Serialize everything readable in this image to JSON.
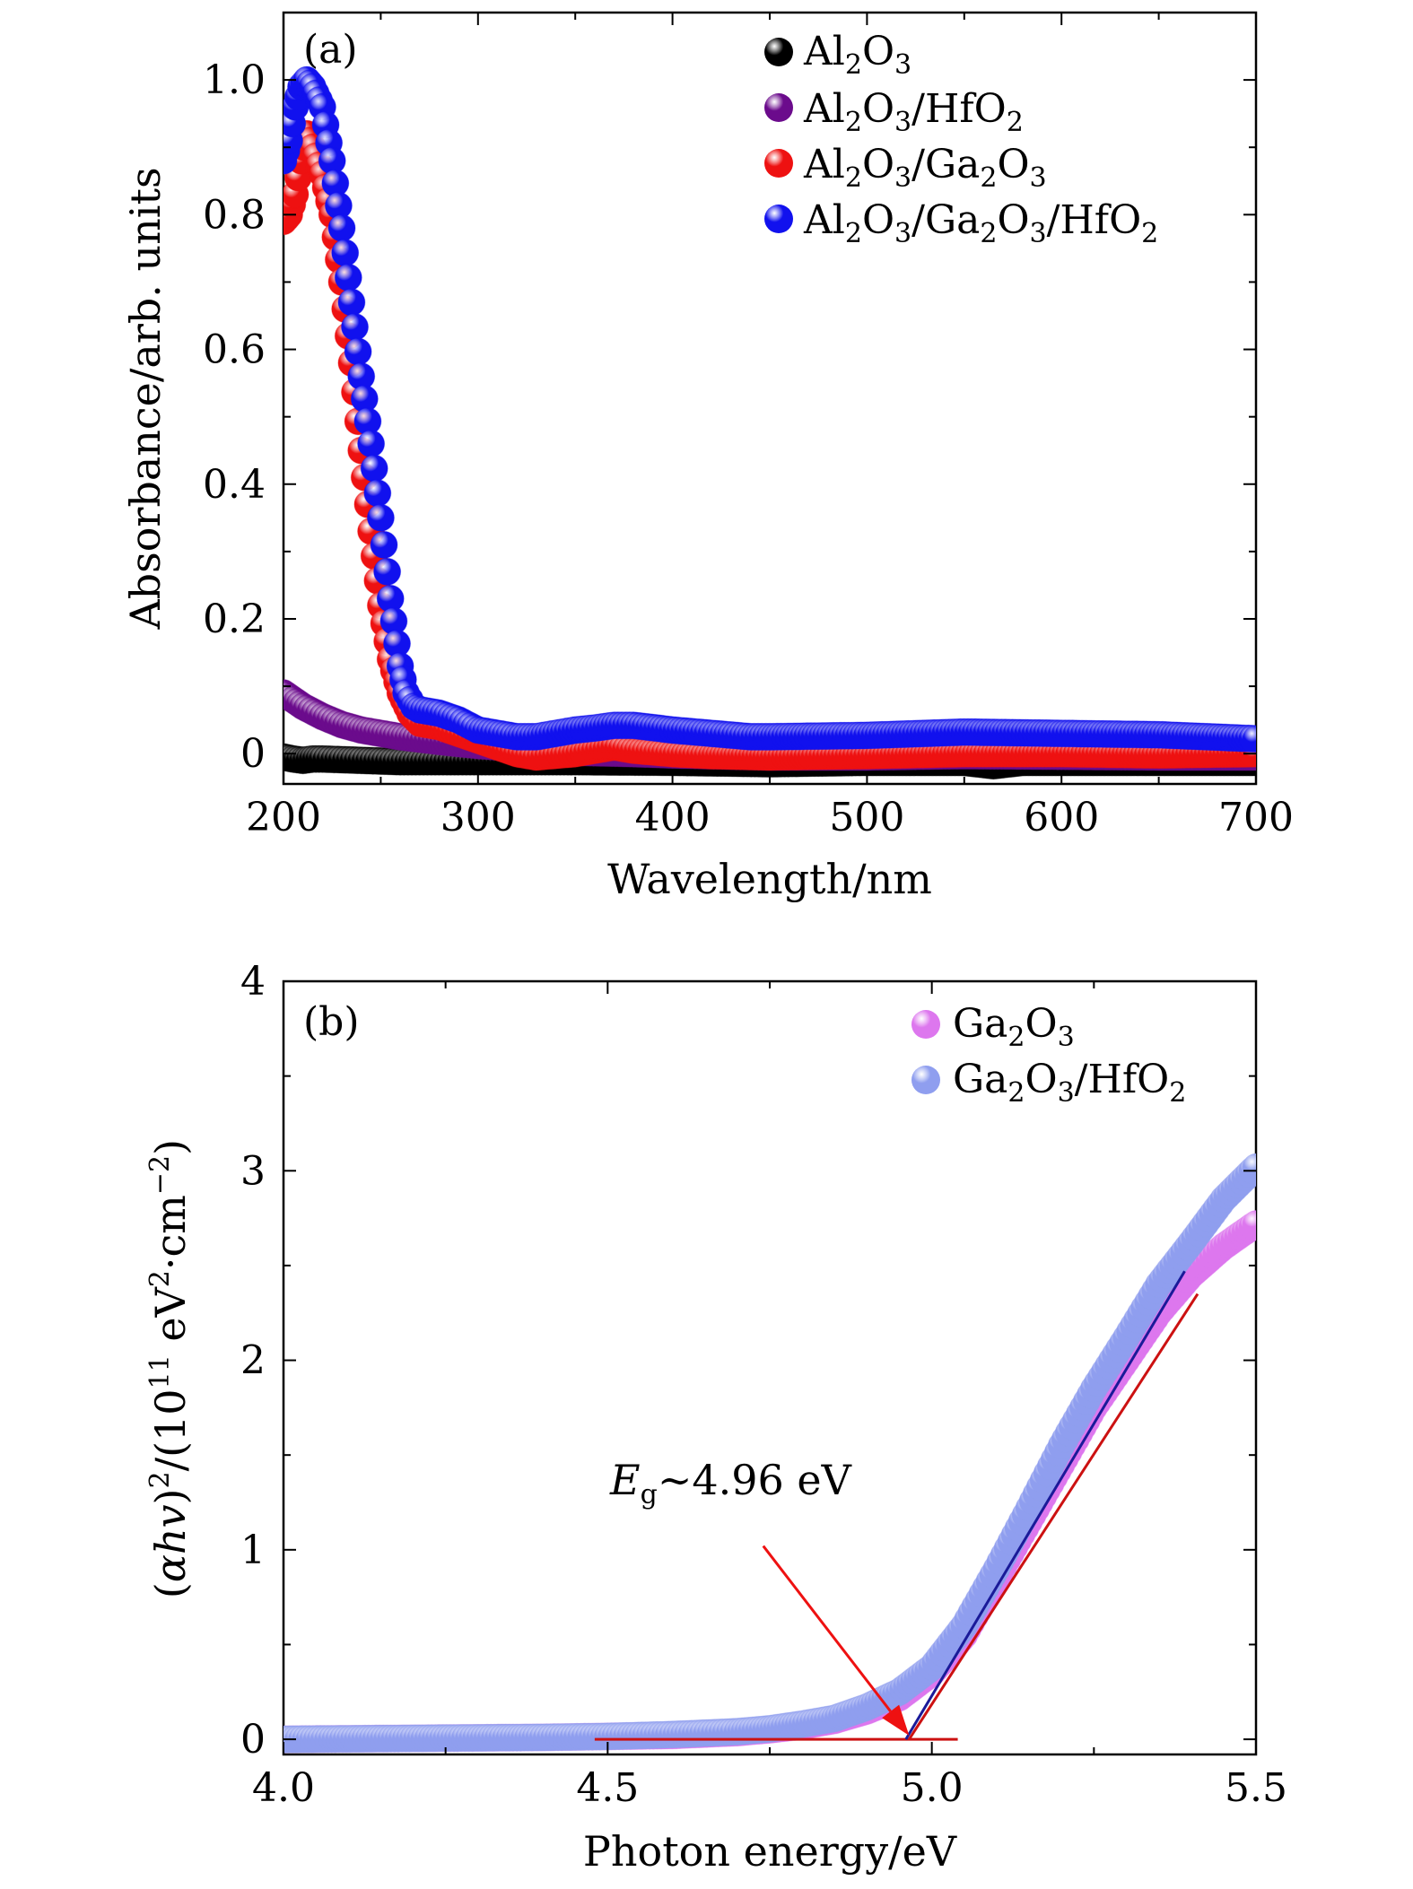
{
  "chart_data": [
    {
      "type": "scatter",
      "panel_label": "(a)",
      "xlabel": "Wavelength/nm",
      "ylabel": "Absorbance/arb. units",
      "xlim": [
        200,
        700
      ],
      "ylim": [
        -0.045,
        1.1
      ],
      "x_ticks": [
        200,
        300,
        400,
        500,
        600,
        700
      ],
      "y_ticks": [
        0,
        0.2,
        0.4,
        0.6,
        0.8,
        1.0
      ],
      "y_tick_labels": [
        "0",
        "0.2",
        "0.4",
        "0.6",
        "0.8",
        "1.0"
      ],
      "legend_position": "top-right",
      "series": [
        {
          "name": "Al2O3",
          "color": "#000000",
          "points": [
            [
              200,
              -0.005
            ],
            [
              205,
              -0.008
            ],
            [
              210,
              -0.01
            ],
            [
              215,
              -0.008
            ],
            [
              220,
              -0.008
            ],
            [
              240,
              -0.01
            ],
            [
              260,
              -0.012
            ],
            [
              280,
              -0.012
            ],
            [
              300,
              -0.012
            ],
            [
              350,
              -0.012
            ],
            [
              400,
              -0.013
            ],
            [
              450,
              -0.015
            ],
            [
              500,
              -0.013
            ],
            [
              550,
              -0.013
            ],
            [
              565,
              -0.018
            ],
            [
              580,
              -0.013
            ],
            [
              600,
              -0.013
            ],
            [
              650,
              -0.013
            ],
            [
              700,
              -0.013
            ]
          ]
        },
        {
          "name": "Al2O3/HfO2",
          "color": "#6b0b8c",
          "points": [
            [
              200,
              0.09
            ],
            [
              205,
              0.08
            ],
            [
              210,
              0.07
            ],
            [
              220,
              0.055
            ],
            [
              230,
              0.043
            ],
            [
              240,
              0.035
            ],
            [
              250,
              0.03
            ],
            [
              260,
              0.025
            ],
            [
              280,
              0.018
            ],
            [
              300,
              0.012
            ],
            [
              320,
              0.008
            ],
            [
              350,
              0.002
            ],
            [
              380,
              0.0
            ],
            [
              400,
              -0.002
            ],
            [
              450,
              -0.005
            ],
            [
              500,
              -0.005
            ],
            [
              550,
              -0.003
            ],
            [
              600,
              -0.004
            ],
            [
              650,
              -0.005
            ],
            [
              700,
              -0.005
            ]
          ]
        },
        {
          "name": "Al2O3/Ga2O3",
          "color": "#ee1111",
          "points": [
            [
              200,
              0.79
            ],
            [
              203,
              0.8
            ],
            [
              206,
              0.83
            ],
            [
              209,
              0.88
            ],
            [
              212,
              0.92
            ],
            [
              215,
              0.9
            ],
            [
              220,
              0.86
            ],
            [
              225,
              0.8
            ],
            [
              230,
              0.7
            ],
            [
              235,
              0.58
            ],
            [
              240,
              0.45
            ],
            [
              245,
              0.33
            ],
            [
              250,
              0.22
            ],
            [
              255,
              0.14
            ],
            [
              260,
              0.09
            ],
            [
              265,
              0.06
            ],
            [
              270,
              0.045
            ],
            [
              280,
              0.04
            ],
            [
              290,
              0.03
            ],
            [
              300,
              0.02
            ],
            [
              310,
              0.01
            ],
            [
              320,
              0.0
            ],
            [
              330,
              -0.005
            ],
            [
              350,
              0.0
            ],
            [
              360,
              0.005
            ],
            [
              370,
              0.01
            ],
            [
              380,
              0.005
            ],
            [
              400,
              0.0
            ],
            [
              420,
              -0.003
            ],
            [
              450,
              -0.005
            ],
            [
              500,
              -0.003
            ],
            [
              550,
              0.0
            ],
            [
              600,
              0.0
            ],
            [
              650,
              -0.002
            ],
            [
              700,
              0.0
            ]
          ]
        },
        {
          "name": "Al2O3/Ga2O3/HfO2",
          "color": "#1111ee",
          "points": [
            [
              200,
              0.88
            ],
            [
              203,
              0.91
            ],
            [
              206,
              0.96
            ],
            [
              209,
              0.99
            ],
            [
              212,
              1.0
            ],
            [
              215,
              0.99
            ],
            [
              220,
              0.96
            ],
            [
              225,
              0.88
            ],
            [
              230,
              0.78
            ],
            [
              235,
              0.67
            ],
            [
              240,
              0.56
            ],
            [
              245,
              0.46
            ],
            [
              250,
              0.35
            ],
            [
              255,
              0.23
            ],
            [
              260,
              0.13
            ],
            [
              263,
              0.09
            ],
            [
              267,
              0.07
            ],
            [
              270,
              0.065
            ],
            [
              280,
              0.06
            ],
            [
              290,
              0.05
            ],
            [
              300,
              0.035
            ],
            [
              310,
              0.03
            ],
            [
              320,
              0.025
            ],
            [
              330,
              0.025
            ],
            [
              340,
              0.03
            ],
            [
              350,
              0.035
            ],
            [
              360,
              0.038
            ],
            [
              370,
              0.042
            ],
            [
              380,
              0.042
            ],
            [
              400,
              0.035
            ],
            [
              420,
              0.03
            ],
            [
              440,
              0.025
            ],
            [
              450,
              0.025
            ],
            [
              500,
              0.027
            ],
            [
              550,
              0.032
            ],
            [
              600,
              0.03
            ],
            [
              650,
              0.028
            ],
            [
              700,
              0.022
            ]
          ]
        }
      ]
    },
    {
      "type": "scatter",
      "panel_label": "(b)",
      "xlabel": "Photon energy/eV",
      "ylabel": "(αhv)²/(10¹¹ eV²·cm⁻²)",
      "xlim": [
        4.0,
        5.5
      ],
      "ylim": [
        -0.08,
        4.0
      ],
      "x_ticks": [
        4.0,
        4.5,
        5.0,
        5.5
      ],
      "x_tick_labels": [
        "4.0",
        "4.5",
        "5.0",
        "5.5"
      ],
      "y_ticks": [
        0,
        1,
        2,
        3,
        4
      ],
      "y_tick_labels": [
        "0",
        "1",
        "2",
        "3",
        "4"
      ],
      "legend_position": "top-right",
      "series": [
        {
          "name": "Ga2O3",
          "color": "#dd77ee",
          "points": [
            [
              4.0,
              0.0
            ],
            [
              4.2,
              0.005
            ],
            [
              4.4,
              0.01
            ],
            [
              4.5,
              0.015
            ],
            [
              4.6,
              0.02
            ],
            [
              4.7,
              0.035
            ],
            [
              4.75,
              0.05
            ],
            [
              4.8,
              0.07
            ],
            [
              4.85,
              0.1
            ],
            [
              4.9,
              0.15
            ],
            [
              4.95,
              0.22
            ],
            [
              5.0,
              0.35
            ],
            [
              5.05,
              0.55
            ],
            [
              5.1,
              0.85
            ],
            [
              5.15,
              1.15
            ],
            [
              5.2,
              1.45
            ],
            [
              5.25,
              1.75
            ],
            [
              5.3,
              2.0
            ],
            [
              5.35,
              2.25
            ],
            [
              5.4,
              2.45
            ],
            [
              5.45,
              2.6
            ],
            [
              5.5,
              2.72
            ]
          ]
        },
        {
          "name": "Ga2O3/HfO2",
          "color": "#8f9eef",
          "points": [
            [
              4.0,
              0.0
            ],
            [
              4.2,
              0.005
            ],
            [
              4.4,
              0.01
            ],
            [
              4.5,
              0.015
            ],
            [
              4.6,
              0.025
            ],
            [
              4.7,
              0.04
            ],
            [
              4.75,
              0.055
            ],
            [
              4.8,
              0.08
            ],
            [
              4.85,
              0.11
            ],
            [
              4.9,
              0.17
            ],
            [
              4.95,
              0.25
            ],
            [
              5.0,
              0.38
            ],
            [
              5.05,
              0.6
            ],
            [
              5.1,
              0.9
            ],
            [
              5.15,
              1.22
            ],
            [
              5.2,
              1.55
            ],
            [
              5.25,
              1.85
            ],
            [
              5.3,
              2.12
            ],
            [
              5.35,
              2.4
            ],
            [
              5.4,
              2.62
            ],
            [
              5.45,
              2.85
            ],
            [
              5.5,
              3.02
            ]
          ]
        }
      ],
      "fit_lines": [
        {
          "color": "#cc1111",
          "from": [
            4.48,
            0.0
          ],
          "to": [
            5.04,
            0.0
          ]
        },
        {
          "color": "#cc1111",
          "from": [
            4.965,
            0.0
          ],
          "to": [
            5.41,
            2.35
          ]
        },
        {
          "color": "#1a1a99",
          "from": [
            4.96,
            0.0
          ],
          "to": [
            5.39,
            2.47
          ]
        }
      ],
      "annotation": {
        "text_symbol": "E",
        "text_sub": "g",
        "text_value": "∼4.96 eV",
        "arrow_color": "#ee1111",
        "arrow_from": [
          4.74,
          1.02
        ],
        "arrow_to": [
          4.965,
          0.02
        ]
      }
    }
  ]
}
